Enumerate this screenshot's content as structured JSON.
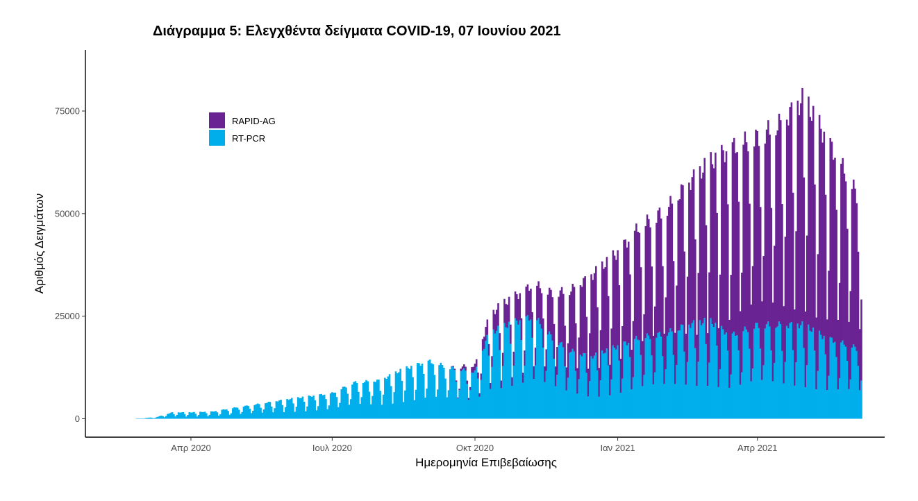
{
  "chart_data": {
    "type": "bar",
    "stacked": true,
    "title": "Διάγραμμα 5: Ελεγχθέντα δείγματα COVID-19, 07 Ιουνίου 2021",
    "xlabel": "Ημερομηνία Επιβεβαίωσης",
    "ylabel": "Αριθμός Δειγμάτων",
    "ylim": [
      0,
      87000
    ],
    "yticks": [
      0,
      25000,
      50000,
      75000
    ],
    "xlim": [
      "2020-01-24",
      "2021-06-22"
    ],
    "xticks": [
      {
        "date": "2020-04-01",
        "label": "Απρ 2020"
      },
      {
        "date": "2020-07-01",
        "label": "Ιουλ 2020"
      },
      {
        "date": "2020-10-01",
        "label": "Οκτ 2020"
      },
      {
        "date": "2021-01-01",
        "label": "Ιαν 2021"
      },
      {
        "date": "2021-04-01",
        "label": "Απρ 2021"
      }
    ],
    "legend_position": "top-left",
    "grid": false,
    "series": [
      {
        "name": "RAPID-AG",
        "color": "#6A2392",
        "keypoints": [
          {
            "date": "2020-09-15",
            "value": 0
          },
          {
            "date": "2020-10-01",
            "value": 1500
          },
          {
            "date": "2020-10-15",
            "value": 5000
          },
          {
            "date": "2020-11-01",
            "value": 6500
          },
          {
            "date": "2020-11-15",
            "value": 9000
          },
          {
            "date": "2020-12-01",
            "value": 14000
          },
          {
            "date": "2020-12-15",
            "value": 19000
          },
          {
            "date": "2021-01-01",
            "value": 22000
          },
          {
            "date": "2021-01-15",
            "value": 26000
          },
          {
            "date": "2021-02-01",
            "value": 29000
          },
          {
            "date": "2021-02-15",
            "value": 33000
          },
          {
            "date": "2021-03-01",
            "value": 37000
          },
          {
            "date": "2021-03-15",
            "value": 44000
          },
          {
            "date": "2021-04-01",
            "value": 44000
          },
          {
            "date": "2021-04-15",
            "value": 47000
          },
          {
            "date": "2021-05-01",
            "value": 53000
          },
          {
            "date": "2021-05-15",
            "value": 47000
          },
          {
            "date": "2021-06-01",
            "value": 38000
          },
          {
            "date": "2021-06-07",
            "value": 34000
          }
        ]
      },
      {
        "name": "RT-PCR",
        "color": "#00AEEB",
        "keypoints": [
          {
            "date": "2020-02-26",
            "value": 30
          },
          {
            "date": "2020-03-10",
            "value": 400
          },
          {
            "date": "2020-03-20",
            "value": 1500
          },
          {
            "date": "2020-04-01",
            "value": 1500
          },
          {
            "date": "2020-04-15",
            "value": 1700
          },
          {
            "date": "2020-05-01",
            "value": 2700
          },
          {
            "date": "2020-05-15",
            "value": 3500
          },
          {
            "date": "2020-06-01",
            "value": 4500
          },
          {
            "date": "2020-06-15",
            "value": 5200
          },
          {
            "date": "2020-07-01",
            "value": 6000
          },
          {
            "date": "2020-07-15",
            "value": 8500
          },
          {
            "date": "2020-08-01",
            "value": 9000
          },
          {
            "date": "2020-08-15",
            "value": 11500
          },
          {
            "date": "2020-09-01",
            "value": 13500
          },
          {
            "date": "2020-09-15",
            "value": 12000
          },
          {
            "date": "2020-10-01",
            "value": 11000
          },
          {
            "date": "2020-10-10",
            "value": 20000
          },
          {
            "date": "2020-10-25",
            "value": 22500
          },
          {
            "date": "2020-11-08",
            "value": 24000
          },
          {
            "date": "2020-11-20",
            "value": 19000
          },
          {
            "date": "2020-12-01",
            "value": 16000
          },
          {
            "date": "2020-12-15",
            "value": 14500
          },
          {
            "date": "2021-01-01",
            "value": 17000
          },
          {
            "date": "2021-01-15",
            "value": 19000
          },
          {
            "date": "2021-02-01",
            "value": 20000
          },
          {
            "date": "2021-02-15",
            "value": 22000
          },
          {
            "date": "2021-03-01",
            "value": 23000
          },
          {
            "date": "2021-03-15",
            "value": 19500
          },
          {
            "date": "2021-04-01",
            "value": 22000
          },
          {
            "date": "2021-04-15",
            "value": 22000
          },
          {
            "date": "2021-05-01",
            "value": 22000
          },
          {
            "date": "2021-05-15",
            "value": 19000
          },
          {
            "date": "2021-06-01",
            "value": 17000
          },
          {
            "date": "2021-06-07",
            "value": 16000
          }
        ]
      }
    ],
    "x_first_date": "2020-02-26",
    "x_last_date": "2021-06-07"
  }
}
